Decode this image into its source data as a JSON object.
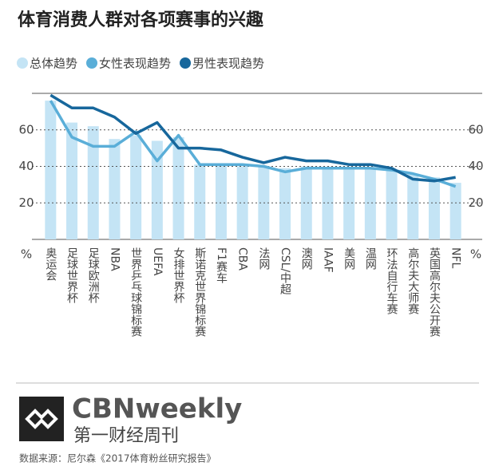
{
  "chart_data": {
    "type": "bar-line",
    "title": "体育消费人群对各项赛事的兴趣",
    "categories": [
      "奥运会",
      "足球世界杯",
      "足球欧洲杯",
      "NBA",
      "世界乒乓球锦标赛",
      "UEFA",
      "女排世界杯",
      "斯诺克世界锦标赛",
      "F1赛车",
      "CBA",
      "法网",
      "CSL/中超",
      "澳网",
      "IAAF",
      "美网",
      "温网",
      "环法自行车赛",
      "高尔夫大师赛",
      "英国高尔夫公开赛",
      "NFL"
    ],
    "series": [
      {
        "name": "总体趋势",
        "type": "bar",
        "color": "#c4e4f5",
        "values": [
          76,
          64,
          62,
          55,
          57,
          54,
          56,
          41,
          41,
          40,
          40,
          39,
          40,
          39,
          39,
          39,
          38,
          36,
          34,
          31
        ]
      },
      {
        "name": "女性表现趋势",
        "type": "line",
        "color": "#5aaed8",
        "values": [
          76,
          56,
          51,
          51,
          59,
          43,
          57,
          41,
          41,
          41,
          40,
          37,
          39,
          39,
          39,
          39,
          38,
          36,
          33,
          29
        ]
      },
      {
        "name": "男性表现趋势",
        "type": "line",
        "color": "#17679c",
        "values": [
          79,
          72,
          72,
          67,
          58,
          64,
          50,
          50,
          49,
          45,
          42,
          45,
          43,
          43,
          41,
          41,
          39,
          33,
          32,
          34
        ]
      }
    ],
    "ylim": [
      0,
      80
    ],
    "yticks": [
      20,
      40,
      60
    ],
    "y_unit": "%",
    "grid": true
  },
  "footer": {
    "brand": "CBNweekly",
    "brand_cn": "第一财经周刊",
    "source": "数据来源：尼尔森《2017体育粉丝研究报告》"
  }
}
